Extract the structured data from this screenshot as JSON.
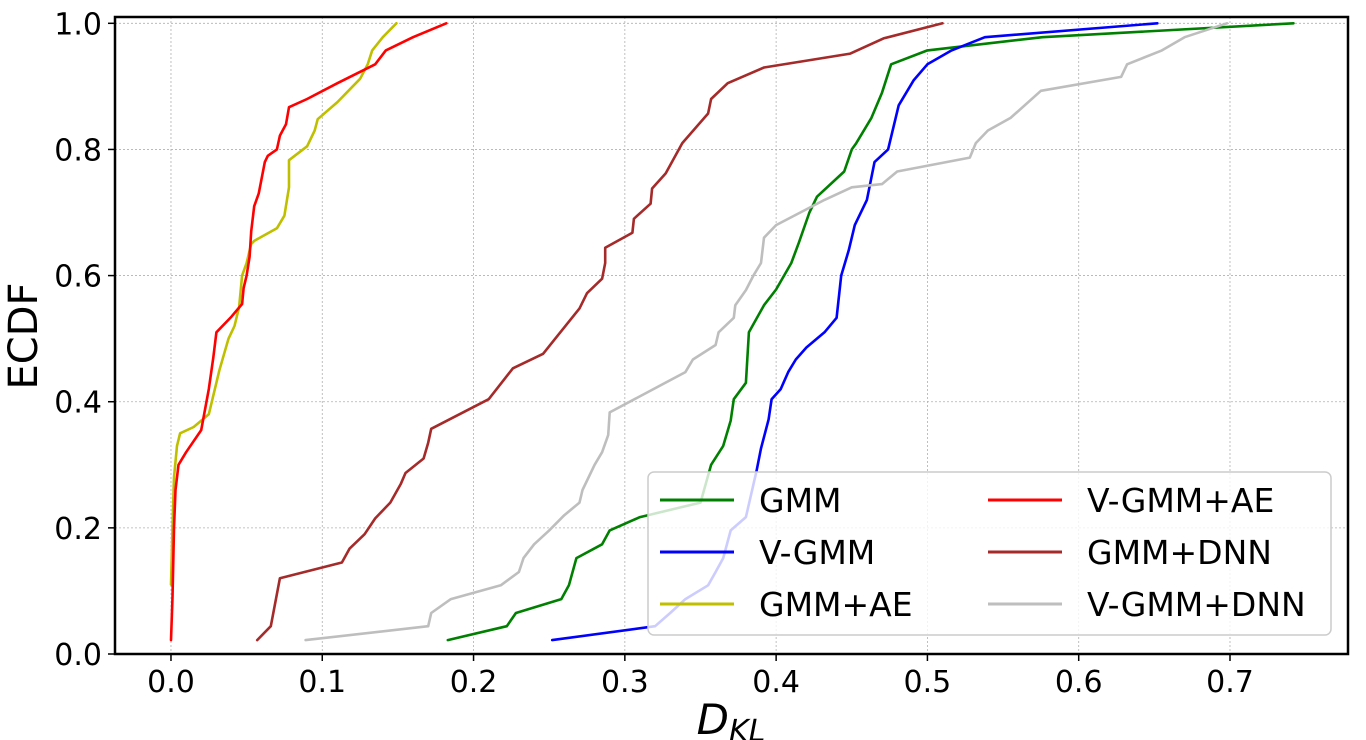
{
  "chart_data": {
    "type": "line",
    "title": "",
    "xlabel": "D",
    "xlabel_sub": "KL",
    "ylabel": "ECDF",
    "xlim": [
      -0.037,
      0.778
    ],
    "ylim": [
      0.0,
      1.01
    ],
    "xticks": [
      0.0,
      0.1,
      0.2,
      0.3,
      0.4,
      0.5,
      0.6,
      0.7
    ],
    "xtick_labels": [
      "0.0",
      "0.1",
      "0.2",
      "0.3",
      "0.4",
      "0.5",
      "0.6",
      "0.7"
    ],
    "yticks": [
      0.0,
      0.2,
      0.4,
      0.6,
      0.8,
      1.0
    ],
    "ytick_labels": [
      "0.0",
      "0.2",
      "0.4",
      "0.6",
      "0.8",
      "1.0"
    ],
    "grid": true,
    "legend_position": "bottom-right",
    "legend_columns": 2,
    "series": [
      {
        "name": "GMM",
        "color": "#008000",
        "x": [
          0.183,
          0.222,
          0.228,
          0.258,
          0.263,
          0.268,
          0.285,
          0.29,
          0.31,
          0.35,
          0.357,
          0.365,
          0.37,
          0.372,
          0.38,
          0.382,
          0.392,
          0.4,
          0.41,
          0.415,
          0.422,
          0.427,
          0.445,
          0.45,
          0.453,
          0.463,
          0.47,
          0.476,
          0.5,
          0.576,
          0.742
        ],
        "y": [
          0.022,
          0.044,
          0.065,
          0.087,
          0.109,
          0.152,
          0.174,
          0.196,
          0.217,
          0.24,
          0.3,
          0.33,
          0.37,
          0.404,
          0.43,
          0.51,
          0.553,
          0.578,
          0.62,
          0.652,
          0.7,
          0.725,
          0.765,
          0.8,
          0.81,
          0.85,
          0.89,
          0.935,
          0.957,
          0.978,
          1.0
        ]
      },
      {
        "name": "V-GMM",
        "color": "#0000ff",
        "x": [
          0.252,
          0.32,
          0.33,
          0.34,
          0.355,
          0.36,
          0.365,
          0.37,
          0.38,
          0.387,
          0.39,
          0.395,
          0.397,
          0.403,
          0.408,
          0.413,
          0.42,
          0.432,
          0.44,
          0.443,
          0.448,
          0.452,
          0.46,
          0.465,
          0.474,
          0.481,
          0.491,
          0.5,
          0.516,
          0.538,
          0.652
        ],
        "y": [
          0.022,
          0.044,
          0.065,
          0.087,
          0.109,
          0.13,
          0.152,
          0.196,
          0.217,
          0.29,
          0.326,
          0.372,
          0.404,
          0.42,
          0.447,
          0.467,
          0.486,
          0.51,
          0.533,
          0.6,
          0.64,
          0.68,
          0.72,
          0.78,
          0.8,
          0.87,
          0.91,
          0.935,
          0.957,
          0.978,
          1.0
        ]
      },
      {
        "name": "GMM+AE",
        "color": "#bfbf00",
        "x": [
          0.0,
          0.001,
          0.002,
          0.004,
          0.006,
          0.015,
          0.025,
          0.032,
          0.038,
          0.042,
          0.045,
          0.047,
          0.05,
          0.053,
          0.055,
          0.07,
          0.075,
          0.078,
          0.078,
          0.09,
          0.095,
          0.097,
          0.11,
          0.125,
          0.13,
          0.133,
          0.14,
          0.149
        ],
        "y": [
          0.11,
          0.2,
          0.28,
          0.33,
          0.35,
          0.36,
          0.38,
          0.45,
          0.5,
          0.52,
          0.55,
          0.6,
          0.62,
          0.65,
          0.655,
          0.675,
          0.695,
          0.74,
          0.783,
          0.805,
          0.83,
          0.848,
          0.875,
          0.912,
          0.935,
          0.957,
          0.978,
          1.0
        ]
      },
      {
        "name": "V-GMM+AE",
        "color": "#ff0000",
        "x": [
          0.0,
          0.001,
          0.002,
          0.003,
          0.005,
          0.01,
          0.02,
          0.025,
          0.028,
          0.03,
          0.04,
          0.047,
          0.048,
          0.05,
          0.052,
          0.053,
          0.055,
          0.058,
          0.062,
          0.064,
          0.07,
          0.072,
          0.076,
          0.078,
          0.09,
          0.11,
          0.135,
          0.142,
          0.16,
          0.182
        ],
        "y": [
          0.022,
          0.09,
          0.2,
          0.26,
          0.3,
          0.32,
          0.355,
          0.42,
          0.47,
          0.51,
          0.535,
          0.555,
          0.58,
          0.6,
          0.63,
          0.67,
          0.71,
          0.73,
          0.78,
          0.79,
          0.8,
          0.822,
          0.84,
          0.867,
          0.88,
          0.905,
          0.935,
          0.957,
          0.978,
          1.0
        ]
      },
      {
        "name": "GMM+DNN",
        "color": "#a52a2a",
        "x": [
          0.057,
          0.066,
          0.068,
          0.072,
          0.113,
          0.118,
          0.128,
          0.135,
          0.145,
          0.152,
          0.155,
          0.167,
          0.17,
          0.172,
          0.21,
          0.226,
          0.246,
          0.254,
          0.27,
          0.275,
          0.285,
          0.287,
          0.287,
          0.305,
          0.306,
          0.317,
          0.318,
          0.327,
          0.338,
          0.355,
          0.357,
          0.368,
          0.392,
          0.449,
          0.471,
          0.51
        ],
        "y": [
          0.022,
          0.044,
          0.07,
          0.12,
          0.145,
          0.167,
          0.19,
          0.215,
          0.24,
          0.27,
          0.287,
          0.31,
          0.335,
          0.357,
          0.404,
          0.453,
          0.476,
          0.5,
          0.548,
          0.572,
          0.595,
          0.62,
          0.644,
          0.668,
          0.69,
          0.714,
          0.738,
          0.762,
          0.81,
          0.857,
          0.88,
          0.905,
          0.93,
          0.952,
          0.976,
          1.0
        ]
      },
      {
        "name": "V-GMM+DNN",
        "color": "#bebebe",
        "x": [
          0.089,
          0.17,
          0.172,
          0.185,
          0.218,
          0.23,
          0.233,
          0.24,
          0.25,
          0.26,
          0.27,
          0.272,
          0.28,
          0.285,
          0.289,
          0.29,
          0.34,
          0.345,
          0.36,
          0.362,
          0.372,
          0.373,
          0.38,
          0.385,
          0.39,
          0.392,
          0.4,
          0.432,
          0.45,
          0.47,
          0.48,
          0.528,
          0.532,
          0.54,
          0.555,
          0.575,
          0.628,
          0.632,
          0.655,
          0.67,
          0.698
        ],
        "y": [
          0.022,
          0.044,
          0.065,
          0.087,
          0.109,
          0.13,
          0.152,
          0.174,
          0.196,
          0.22,
          0.24,
          0.26,
          0.3,
          0.32,
          0.347,
          0.383,
          0.447,
          0.467,
          0.49,
          0.51,
          0.533,
          0.553,
          0.577,
          0.6,
          0.62,
          0.66,
          0.68,
          0.72,
          0.74,
          0.745,
          0.765,
          0.787,
          0.81,
          0.83,
          0.85,
          0.893,
          0.915,
          0.935,
          0.957,
          0.978,
          1.0
        ]
      }
    ]
  }
}
